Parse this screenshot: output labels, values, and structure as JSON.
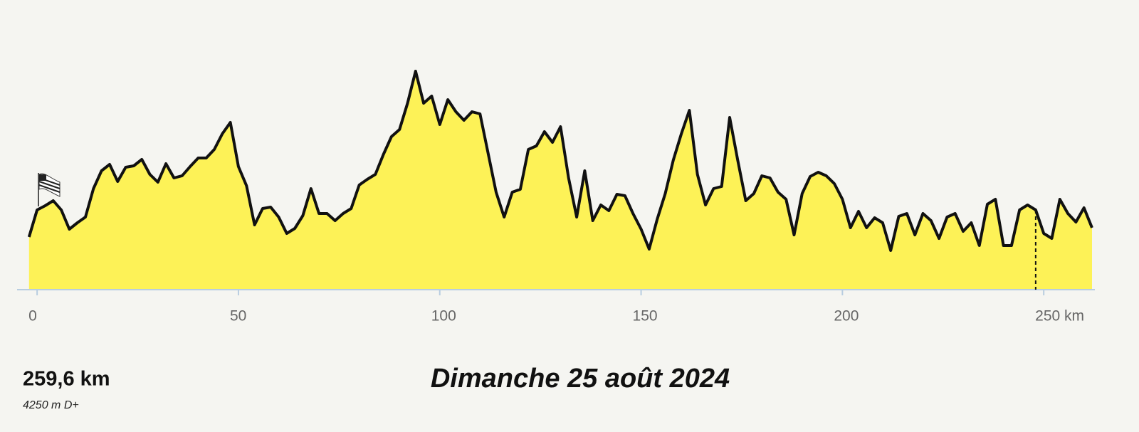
{
  "chart_data": {
    "type": "area",
    "title": "Dimanche 25 août 2024",
    "distance": "259,6 km",
    "elevation_gain": "4250 m D+",
    "x": [
      -2,
      0,
      2,
      4,
      6,
      8,
      10,
      12,
      14,
      16,
      18,
      20,
      22,
      24,
      26,
      28,
      30,
      32,
      34,
      36,
      38,
      40,
      42,
      44,
      46,
      48,
      50,
      52,
      54,
      56,
      58,
      60,
      62,
      64,
      66,
      68,
      70,
      72,
      74,
      76,
      78,
      80,
      82,
      84,
      86,
      88,
      90,
      92,
      94,
      96,
      98,
      100,
      102,
      104,
      106,
      108,
      110,
      112,
      114,
      116,
      118,
      120,
      122,
      124,
      126,
      128,
      130,
      132,
      134,
      136,
      138,
      140,
      142,
      144,
      146,
      148,
      150,
      152,
      154,
      156,
      158,
      160,
      162,
      164,
      166,
      168,
      170,
      172,
      174,
      176,
      178,
      180,
      182,
      184,
      186,
      188,
      190,
      192,
      194,
      196,
      198,
      200,
      202,
      204,
      206,
      208,
      210,
      212,
      214,
      216,
      218,
      220,
      222,
      224,
      226,
      228,
      230,
      232,
      234,
      236,
      238,
      240,
      242,
      244,
      246,
      248,
      250,
      252,
      254,
      256,
      258,
      260,
      262
    ],
    "values": [
      74,
      112,
      118,
      125,
      112,
      85,
      94,
      102,
      142,
      167,
      176,
      152,
      172,
      174,
      183,
      162,
      151,
      177,
      157,
      160,
      173,
      185,
      185,
      197,
      219,
      235,
      173,
      146,
      91,
      114,
      116,
      102,
      79,
      86,
      104,
      142,
      107,
      107,
      97,
      107,
      114,
      147,
      155,
      162,
      190,
      215,
      225,
      262,
      307,
      262,
      272,
      232,
      267,
      250,
      238,
      250,
      247,
      192,
      137,
      102,
      137,
      141,
      197,
      202,
      222,
      207,
      229,
      157,
      102,
      167,
      97,
      119,
      111,
      134,
      132,
      107,
      85,
      57,
      99,
      135,
      182,
      219,
      252,
      162,
      119,
      142,
      145,
      242,
      182,
      125,
      135,
      160,
      157,
      137,
      127,
      77,
      135,
      159,
      165,
      160,
      149,
      127,
      87,
      110,
      87,
      101,
      94,
      55,
      103,
      107,
      77,
      107,
      97,
      72,
      102,
      107,
      82,
      94,
      62,
      120,
      127,
      62,
      62,
      112,
      119,
      112,
      79,
      72,
      127,
      107,
      95,
      115,
      87
    ],
    "color": "#fdf257",
    "line_color": "#111111",
    "xlim": [
      -2.5,
      262.7
    ],
    "ylim": [
      0,
      320
    ],
    "xticks": [
      0,
      50,
      100,
      150,
      200,
      {
        "value": 250,
        "label": "250 km"
      }
    ],
    "marker_x": 248
  }
}
